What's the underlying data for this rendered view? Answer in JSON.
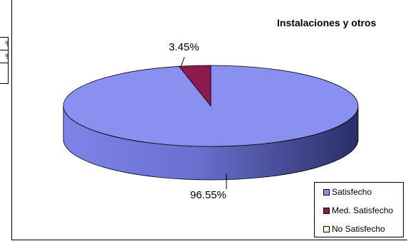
{
  "chart_data": {
    "type": "pie",
    "title": "Instalaciones y otros",
    "categories": [
      "Satisfecho",
      "Med. Satisfecho",
      "No Satisfecho"
    ],
    "values": [
      96.55,
      3.45,
      0
    ],
    "data_labels": [
      "96.55%",
      "3.45%",
      ""
    ],
    "colors": [
      "#8a90f0",
      "#8e1a4e",
      "#ffffcc"
    ],
    "legend_position": "bottom-right",
    "three_d": true
  },
  "left_stub_labels": [
    "%",
    "%",
    "o"
  ]
}
